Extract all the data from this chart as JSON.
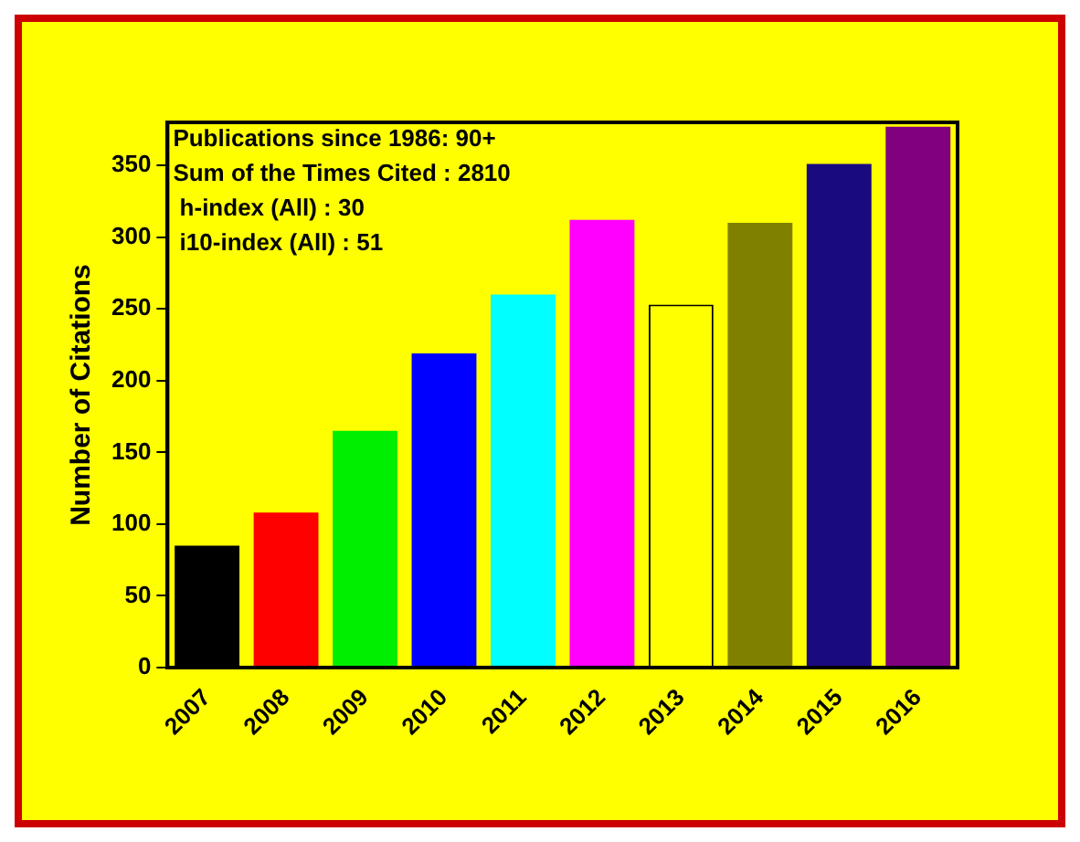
{
  "chart_data": {
    "type": "bar",
    "ylabel": "Number of Citations",
    "categories": [
      "2007",
      "2008",
      "2009",
      "2010",
      "2011",
      "2012",
      "2013",
      "2014",
      "2015",
      "2016"
    ],
    "values": [
      85,
      108,
      165,
      219,
      260,
      312,
      253,
      310,
      351,
      377
    ],
    "colors": [
      "#000000",
      "#ff0000",
      "#00ee00",
      "#0000ff",
      "#00ffff",
      "#ff00ff",
      "#ffff00",
      "#808000",
      "#1a0a80",
      "#800080"
    ],
    "ylim": [
      0,
      380
    ],
    "yticks": [
      0,
      50,
      100,
      150,
      200,
      250,
      300,
      350
    ],
    "grid": false,
    "legend": false,
    "annotations": [
      "Publications since 1986: 90+",
      "Sum of the Times Cited : 2810",
      " h-index (All) : 30",
      " i10-index (All) : 51"
    ]
  }
}
